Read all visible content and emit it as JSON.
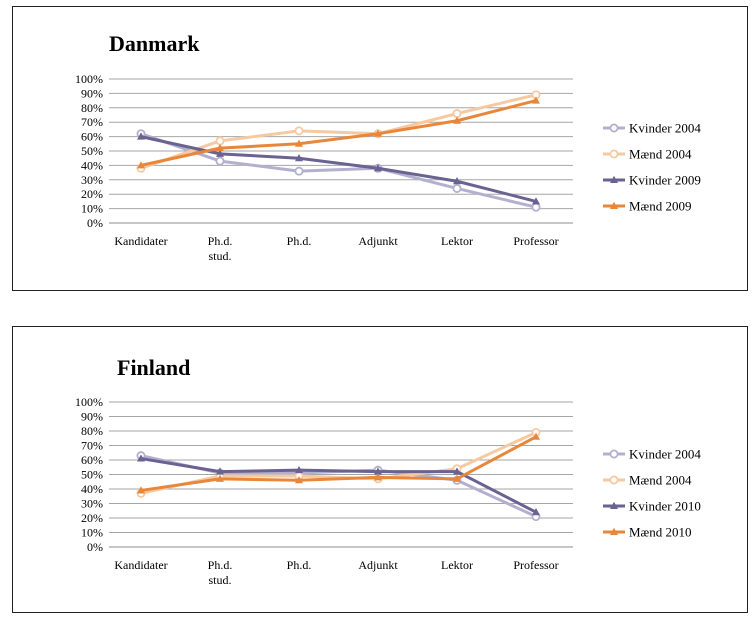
{
  "chart_data": [
    {
      "type": "line",
      "title": "Danmark",
      "categories": [
        "Kandidater",
        "Ph.d. stud.",
        "Ph.d.",
        "Adjunkt",
        "Lektor",
        "Professor"
      ],
      "category_lines": [
        [
          "Kandidater"
        ],
        [
          "Ph.d.",
          "stud."
        ],
        [
          "Ph.d."
        ],
        [
          "Adjunkt"
        ],
        [
          "Lektor"
        ],
        [
          "Professor"
        ]
      ],
      "yticks": [
        "0%",
        "10%",
        "20%",
        "30%",
        "40%",
        "50%",
        "60%",
        "70%",
        "80%",
        "90%",
        "100%"
      ],
      "ylim": [
        0,
        100
      ],
      "grid": true,
      "legend_position": "right",
      "series": [
        {
          "name": "Kvinder 2004",
          "values": [
            62,
            43,
            36,
            38,
            24,
            11
          ],
          "color": "#b3b0cf",
          "marker": "circle"
        },
        {
          "name": "Mænd 2004",
          "values": [
            38,
            57,
            64,
            62,
            76,
            89
          ],
          "color": "#f6c9a0",
          "marker": "circle"
        },
        {
          "name": "Kvinder 2009",
          "values": [
            60,
            48,
            45,
            38,
            29,
            15
          ],
          "color": "#6a6291",
          "marker": "triangle"
        },
        {
          "name": "Mænd 2009",
          "values": [
            40,
            52,
            55,
            62,
            71,
            85
          ],
          "color": "#e8873a",
          "marker": "triangle"
        }
      ]
    },
    {
      "type": "line",
      "title": "Finland",
      "categories": [
        "Kandidater",
        "Ph.d. stud.",
        "Ph.d.",
        "Adjunkt",
        "Lektor",
        "Professor"
      ],
      "category_lines": [
        [
          "Kandidater"
        ],
        [
          "Ph.d.",
          "stud."
        ],
        [
          "Ph.d."
        ],
        [
          "Adjunkt"
        ],
        [
          "Lektor"
        ],
        [
          "Professor"
        ]
      ],
      "yticks": [
        "0%",
        "10%",
        "20%",
        "30%",
        "40%",
        "50%",
        "60%",
        "70%",
        "80%",
        "90%",
        "100%"
      ],
      "ylim": [
        0,
        100
      ],
      "grid": true,
      "legend_position": "right",
      "series": [
        {
          "name": "Kvinder 2004",
          "values": [
            63,
            51,
            51,
            53,
            46,
            21
          ],
          "color": "#b3b0cf",
          "marker": "circle"
        },
        {
          "name": "Mænd 2004",
          "values": [
            37,
            49,
            49,
            47,
            54,
            79
          ],
          "color": "#f6c9a0",
          "marker": "circle"
        },
        {
          "name": "Kvinder 2010",
          "values": [
            61,
            52,
            53,
            52,
            52,
            24
          ],
          "color": "#6a6291",
          "marker": "triangle"
        },
        {
          "name": "Mænd 2010",
          "values": [
            39,
            47,
            46,
            48,
            47,
            76
          ],
          "color": "#e8873a",
          "marker": "triangle"
        }
      ]
    }
  ]
}
